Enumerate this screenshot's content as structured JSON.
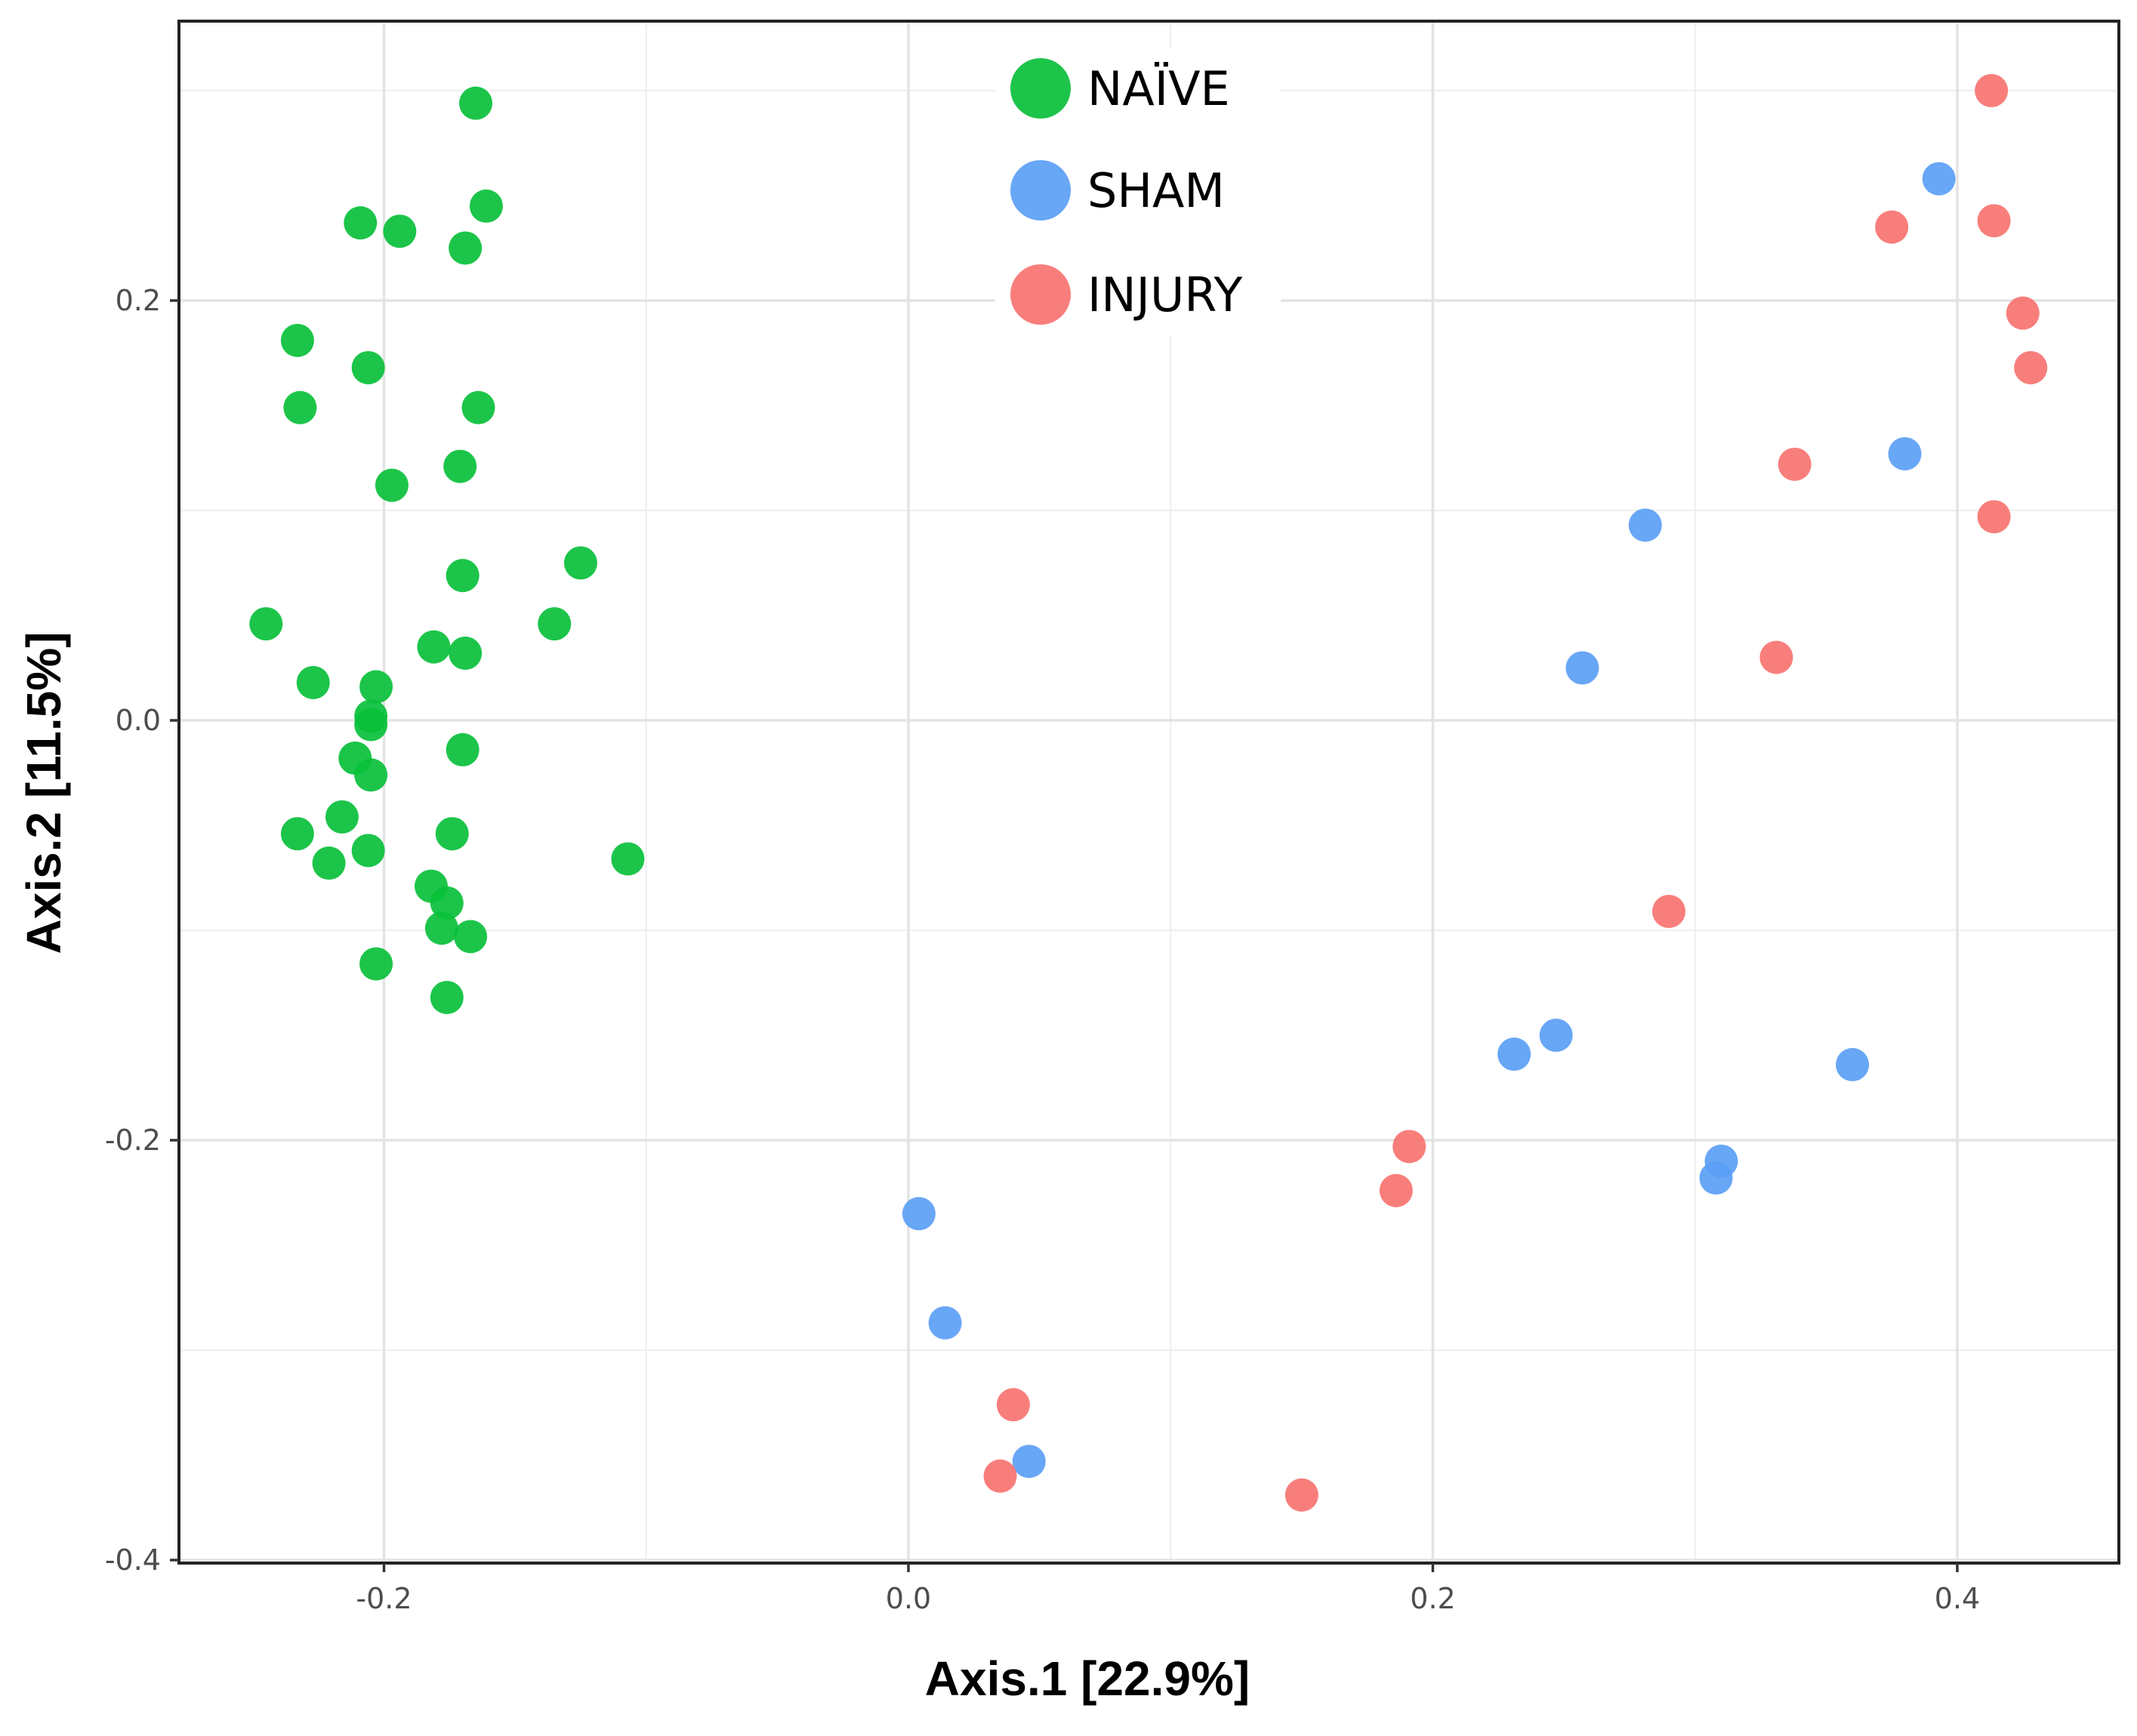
{
  "chart_data": {
    "type": "scatter",
    "title": "",
    "xlabel": "Axis.1 [22.9%]",
    "ylabel": "Axis.2 [11.5%]",
    "xlim": [
      -0.28,
      0.45
    ],
    "ylim": [
      -0.4,
      0.335
    ],
    "x_ticks": [
      -0.2,
      0.0,
      0.2,
      0.4
    ],
    "x_tick_labels": [
      "-0.2",
      "0.0",
      "0.2",
      "0.4"
    ],
    "y_ticks": [
      -0.4,
      -0.2,
      0.0,
      0.2
    ],
    "y_tick_labels": [
      "-0.4",
      "-0.2",
      "0.0",
      "0.2"
    ],
    "grid": true,
    "legend_position": "top-center",
    "series": [
      {
        "name": "NAÏVE",
        "color": "#09c03a",
        "points": [
          [
            -0.165,
            0.294
          ],
          [
            -0.161,
            0.245
          ],
          [
            -0.209,
            0.237
          ],
          [
            -0.194,
            0.233
          ],
          [
            -0.169,
            0.225
          ],
          [
            -0.233,
            0.181
          ],
          [
            -0.206,
            0.168
          ],
          [
            -0.232,
            0.149
          ],
          [
            -0.164,
            0.149
          ],
          [
            -0.171,
            0.121
          ],
          [
            -0.197,
            0.112
          ],
          [
            -0.125,
            0.075
          ],
          [
            -0.17,
            0.069
          ],
          [
            -0.245,
            0.046
          ],
          [
            -0.135,
            0.046
          ],
          [
            -0.181,
            0.035
          ],
          [
            -0.169,
            0.032
          ],
          [
            -0.227,
            0.018
          ],
          [
            -0.203,
            0.016
          ],
          [
            -0.205,
            0.002
          ],
          [
            -0.205,
            -0.002
          ],
          [
            -0.211,
            -0.018
          ],
          [
            -0.205,
            -0.026
          ],
          [
            -0.17,
            -0.014
          ],
          [
            -0.216,
            -0.046
          ],
          [
            -0.233,
            -0.054
          ],
          [
            -0.174,
            -0.054
          ],
          [
            -0.206,
            -0.062
          ],
          [
            -0.221,
            -0.068
          ],
          [
            -0.107,
            -0.066
          ],
          [
            -0.182,
            -0.079
          ],
          [
            -0.176,
            -0.087
          ],
          [
            -0.178,
            -0.099
          ],
          [
            -0.167,
            -0.103
          ],
          [
            -0.203,
            -0.116
          ],
          [
            -0.176,
            -0.132
          ]
        ]
      },
      {
        "name": "SHAM",
        "color": "#5b9ef5",
        "points": [
          [
            0.393,
            0.258
          ],
          [
            0.38,
            0.127
          ],
          [
            0.281,
            0.093
          ],
          [
            0.257,
            0.025
          ],
          [
            0.247,
            -0.15
          ],
          [
            0.231,
            -0.159
          ],
          [
            0.36,
            -0.164
          ],
          [
            0.31,
            -0.21
          ],
          [
            0.308,
            -0.218
          ],
          [
            0.004,
            -0.235
          ],
          [
            0.014,
            -0.287
          ],
          [
            0.046,
            -0.353
          ]
        ]
      },
      {
        "name": "INJURY",
        "color": "#f77370",
        "points": [
          [
            0.413,
            0.3
          ],
          [
            0.375,
            0.235
          ],
          [
            0.414,
            0.238
          ],
          [
            0.425,
            0.194
          ],
          [
            0.428,
            0.168
          ],
          [
            0.338,
            0.122
          ],
          [
            0.414,
            0.097
          ],
          [
            0.331,
            0.03
          ],
          [
            0.29,
            -0.091
          ],
          [
            0.191,
            -0.203
          ],
          [
            0.186,
            -0.224
          ],
          [
            0.04,
            -0.326
          ],
          [
            0.035,
            -0.36
          ],
          [
            0.15,
            -0.369
          ]
        ]
      }
    ]
  }
}
